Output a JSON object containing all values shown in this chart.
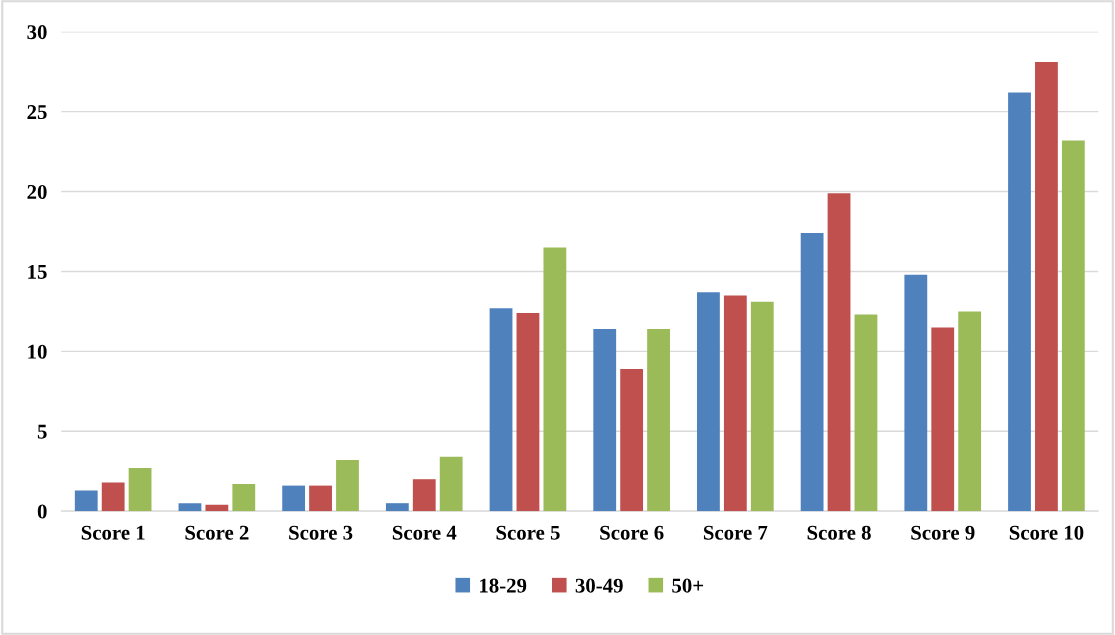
{
  "chart_data": {
    "type": "bar",
    "categories": [
      "Score 1",
      "Score 2",
      "Score 3",
      "Score 4",
      "Score 5",
      "Score 6",
      "Score 7",
      "Score 8",
      "Score 9",
      "Score 10"
    ],
    "series": [
      {
        "name": "18-29",
        "color": "#4f81bd",
        "values": [
          1.3,
          0.5,
          1.6,
          0.5,
          12.7,
          11.4,
          13.7,
          17.4,
          14.8,
          26.2
        ]
      },
      {
        "name": "30-49",
        "color": "#c0504d",
        "values": [
          1.8,
          0.4,
          1.6,
          2.0,
          12.4,
          8.9,
          13.5,
          19.9,
          11.5,
          28.1
        ]
      },
      {
        "name": "50+",
        "color": "#9bbb59",
        "values": [
          2.7,
          1.7,
          3.2,
          3.4,
          16.5,
          11.4,
          13.1,
          12.3,
          12.5,
          23.2
        ]
      }
    ],
    "ylim": [
      0,
      30
    ],
    "yticks": [
      0,
      5,
      10,
      15,
      20,
      25,
      30
    ],
    "grid": "y",
    "legend": "bottom"
  }
}
